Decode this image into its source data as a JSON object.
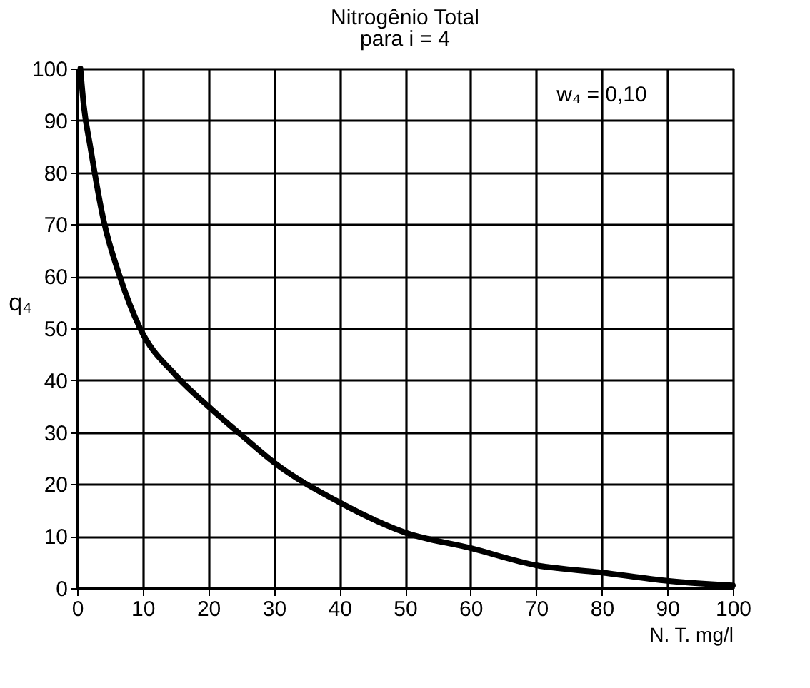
{
  "chart_data": {
    "type": "line",
    "title": "Nitrogênio Total",
    "subtitle": "para i = 4",
    "xlabel": "N. T. mg/l",
    "ylabel": "q₄",
    "x": [
      0.5,
      1,
      2,
      4,
      6.5,
      9.6,
      15,
      20,
      25,
      30,
      40,
      50,
      60,
      70,
      80,
      90,
      100
    ],
    "series": [
      {
        "color": "#000000",
        "values": [
          100,
          93,
          85,
          71,
          60,
          50,
          41,
          35,
          29.5,
          24.2,
          16.5,
          10.7,
          7.7,
          4.4,
          3,
          1.4,
          0.5
        ]
      }
    ],
    "xlim": [
      0,
      100
    ],
    "ylim": [
      0,
      100
    ],
    "xticks": [
      0,
      10,
      20,
      30,
      40,
      50,
      60,
      70,
      80,
      90,
      100
    ],
    "yticks": [
      0,
      10,
      20,
      30,
      40,
      50,
      60,
      70,
      80,
      90,
      100
    ],
    "grid": true,
    "marker": "none",
    "line_style": "solid",
    "annotations": [
      "w₄ = 0,10"
    ]
  }
}
